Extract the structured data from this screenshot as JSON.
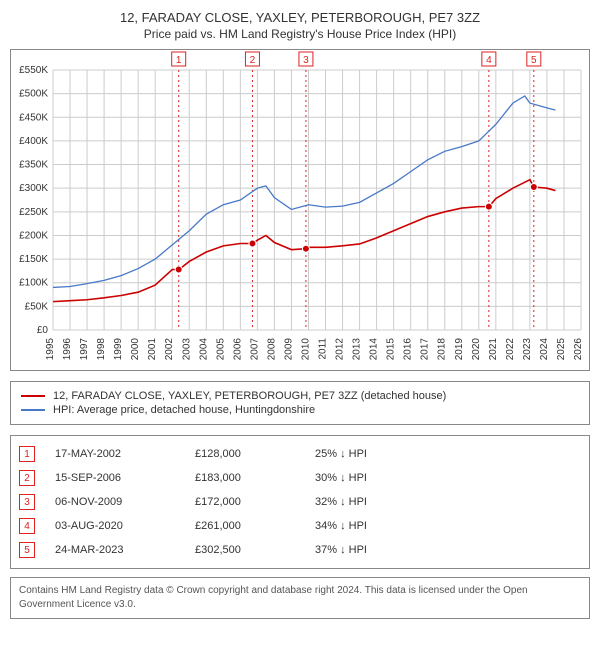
{
  "title": {
    "line1": "12, FARADAY CLOSE, YAXLEY, PETERBOROUGH, PE7 3ZZ",
    "line2": "Price paid vs. HM Land Registry's House Price Index (HPI)",
    "fontsize_l1": 13,
    "fontsize_l2": 12
  },
  "chart": {
    "type": "line",
    "background_color": "#ffffff",
    "grid_color": "#cccccc",
    "axis_color": "#888888",
    "ylim": [
      0,
      550000
    ],
    "ytick_step": 50000,
    "ylabel_prefix": "£",
    "ylabel_suffix": "K",
    "xlim": [
      1995,
      2026
    ],
    "xtick_step": 1,
    "x_label_fontsize": 10,
    "y_label_fontsize": 10,
    "marker_line_color": "#dd2222",
    "marker_line_dash": "2,3",
    "series": [
      {
        "name": "property",
        "color": "#cc0000",
        "width": 1.6,
        "data": [
          [
            1995,
            60000
          ],
          [
            1996,
            62000
          ],
          [
            1997,
            64000
          ],
          [
            1998,
            68000
          ],
          [
            1999,
            73000
          ],
          [
            2000,
            80000
          ],
          [
            2001,
            95000
          ],
          [
            2002,
            128000
          ],
          [
            2002.4,
            128000
          ],
          [
            2003,
            145000
          ],
          [
            2004,
            165000
          ],
          [
            2005,
            178000
          ],
          [
            2006,
            183000
          ],
          [
            2006.7,
            183000
          ],
          [
            2007,
            190000
          ],
          [
            2007.5,
            200000
          ],
          [
            2008,
            185000
          ],
          [
            2009,
            170000
          ],
          [
            2009.85,
            172000
          ],
          [
            2010,
            175000
          ],
          [
            2011,
            175000
          ],
          [
            2012,
            178000
          ],
          [
            2013,
            182000
          ],
          [
            2014,
            195000
          ],
          [
            2015,
            210000
          ],
          [
            2016,
            225000
          ],
          [
            2017,
            240000
          ],
          [
            2018,
            250000
          ],
          [
            2019,
            258000
          ],
          [
            2020,
            261000
          ],
          [
            2020.6,
            261000
          ],
          [
            2021,
            278000
          ],
          [
            2022,
            300000
          ],
          [
            2023,
            318000
          ],
          [
            2023.23,
            302500
          ],
          [
            2024,
            300000
          ],
          [
            2024.5,
            295000
          ]
        ]
      },
      {
        "name": "hpi",
        "color": "#4878c8",
        "width": 1.3,
        "data": [
          [
            1995,
            90000
          ],
          [
            1996,
            92000
          ],
          [
            1997,
            98000
          ],
          [
            1998,
            105000
          ],
          [
            1999,
            115000
          ],
          [
            2000,
            130000
          ],
          [
            2001,
            150000
          ],
          [
            2002,
            180000
          ],
          [
            2003,
            210000
          ],
          [
            2004,
            245000
          ],
          [
            2005,
            265000
          ],
          [
            2006,
            275000
          ],
          [
            2007,
            300000
          ],
          [
            2007.5,
            305000
          ],
          [
            2008,
            280000
          ],
          [
            2009,
            255000
          ],
          [
            2010,
            265000
          ],
          [
            2011,
            260000
          ],
          [
            2012,
            262000
          ],
          [
            2013,
            270000
          ],
          [
            2014,
            290000
          ],
          [
            2015,
            310000
          ],
          [
            2016,
            335000
          ],
          [
            2017,
            360000
          ],
          [
            2018,
            378000
          ],
          [
            2019,
            388000
          ],
          [
            2020,
            400000
          ],
          [
            2021,
            435000
          ],
          [
            2022,
            480000
          ],
          [
            2022.7,
            495000
          ],
          [
            2023,
            480000
          ],
          [
            2024,
            470000
          ],
          [
            2024.5,
            465000
          ]
        ]
      }
    ],
    "transactions": [
      {
        "n": 1,
        "year": 2002.38,
        "price": 128000
      },
      {
        "n": 2,
        "year": 2006.71,
        "price": 183000
      },
      {
        "n": 3,
        "year": 2009.85,
        "price": 172000
      },
      {
        "n": 4,
        "year": 2020.59,
        "price": 261000
      },
      {
        "n": 5,
        "year": 2023.23,
        "price": 302500
      }
    ]
  },
  "legend": {
    "items": [
      {
        "color": "#cc0000",
        "label": "12, FARADAY CLOSE, YAXLEY, PETERBOROUGH, PE7 3ZZ (detached house)"
      },
      {
        "color": "#4878c8",
        "label": "HPI: Average price, detached house, Huntingdonshire"
      }
    ]
  },
  "tx_table": {
    "marker_color": "#dd2222",
    "rows": [
      {
        "n": "1",
        "date": "17-MAY-2002",
        "price": "£128,000",
        "pct": "25% ↓ HPI"
      },
      {
        "n": "2",
        "date": "15-SEP-2006",
        "price": "£183,000",
        "pct": "30% ↓ HPI"
      },
      {
        "n": "3",
        "date": "06-NOV-2009",
        "price": "£172,000",
        "pct": "32% ↓ HPI"
      },
      {
        "n": "4",
        "date": "03-AUG-2020",
        "price": "£261,000",
        "pct": "34% ↓ HPI"
      },
      {
        "n": "5",
        "date": "24-MAR-2023",
        "price": "£302,500",
        "pct": "37% ↓ HPI"
      }
    ]
  },
  "footer": {
    "text": "Contains HM Land Registry data © Crown copyright and database right 2024. This data is licensed under the Open Government Licence v3.0."
  }
}
